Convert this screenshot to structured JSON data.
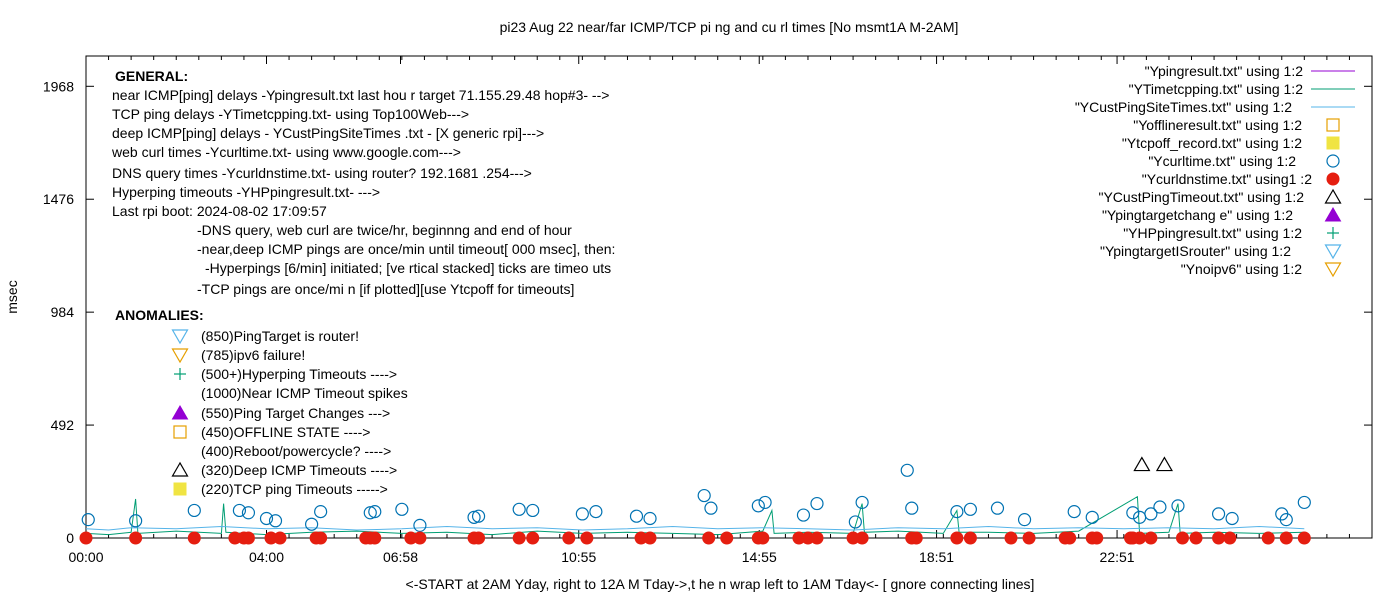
{
  "chart_data": {
    "type": "scatter",
    "title": "pi23 Aug 22  near/far ICMP/TCP pi ng and cu rl times [No msmt1A M-2AM]",
    "xlabel": "<-START at 2AM Yday, right to 12A M Tday->,t he n wrap left to 1AM Tday<- [ gnore connecting lines]",
    "ylabel": "msec",
    "y_ticks": [
      "0",
      "492",
      "984",
      "1476",
      "1968"
    ],
    "x_ticks": [
      "00:00",
      "04:00",
      "06:58",
      "10:55",
      "14:55",
      "18:51",
      "22:51"
    ],
    "x_tick_hours": [
      0,
      4,
      6.97,
      10.92,
      14.92,
      18.85,
      22.85
    ],
    "xlim_hours": [
      0,
      28.5
    ],
    "ylim": [
      0,
      2100
    ],
    "grid": false,
    "legend_position": "top-right",
    "legend": [
      {
        "label": "\"Ypingresult.txt\" using 1:2",
        "symbol": "line",
        "color": "#9400d3"
      },
      {
        "label": "\"YTimetcpping.txt\" using 1:2",
        "symbol": "line",
        "color": "#009e73"
      },
      {
        "label": "\"YCustPingSiteTimes.txt\" using 1:2",
        "symbol": "line",
        "color": "#56b4e9"
      },
      {
        "label": "\"Yofflineresult.txt\" using 1:2",
        "symbol": "open-square",
        "color": "#e69f00"
      },
      {
        "label": "\"Ytcpoff_record.txt\" using 1:2",
        "symbol": "filled-square",
        "color": "#f0e442"
      },
      {
        "label": "\"Ycurltime.txt\" using 1:2",
        "symbol": "open-circle",
        "color": "#0072b2"
      },
      {
        "label": "\"Ycurldnstime.txt\" using1 :2",
        "symbol": "filled-circle",
        "color": "#e51e10"
      },
      {
        "label": "\"YCustPingTimeout.txt\" using 1:2",
        "symbol": "open-triangle-up",
        "color": "#000000"
      },
      {
        "label": "\"Ypingtargetchang e\" using 1:2",
        "symbol": "filled-triangle-up",
        "color": "#9400d3"
      },
      {
        "label": "\"YHPpingresult.txt\" using 1:2",
        "symbol": "plus",
        "color": "#009e73"
      },
      {
        "label": "\"YpingtargetISrouter\" using 1:2",
        "symbol": "open-triangle-down",
        "color": "#56b4e9"
      },
      {
        "label": "\"Ynoipv6\" using 1:2",
        "symbol": "open-triangle-down",
        "color": "#e69f00"
      }
    ],
    "annotation_general": [
      "GENERAL:",
      "near ICMP[ping] delays -Ypingresult.txt last hou r target 71.155.29.48 hop#3- -->",
      "TCP ping delays -YTimetcpping.txt- using Top100Web--->",
      "deep ICMP[ping] delays - YCustPingSiteTimes .txt - [X generic rpi]--->",
      "web curl times -Ycurltime.txt- using www.google.com--->",
      "DNS query times -Ycurldnstime.txt- using router? 192.1681 .254--->",
      "Hyperping timeouts -YHPpingresult.txt- --->",
      "Last rpi boot: 2024-08-02 17:09:57",
      "-DNS query, web curl are twice/hr, beginnng and end of hour",
      "-near,deep ICMP pings are once/min until timeout[  000 msec], then:",
      "-Hyperpings [6/min] initiated; [ve rtical stacked] ticks are timeo uts",
      "-TCP pings are once/mi n  [if plotted][use Ytcpoff for timeouts]"
    ],
    "annotation_anomalies_title": "ANOMALIES:",
    "annotation_anomalies": [
      {
        "symbol": "open-triangle-down",
        "color": "#56b4e9",
        "text": "(850)PingTarget is router!"
      },
      {
        "symbol": "open-triangle-down",
        "color": "#e69f00",
        "text": "(785)ipv6 failure!"
      },
      {
        "symbol": "plus",
        "color": "#009e73",
        "text": "(500+)Hyperping Timeouts ---->"
      },
      {
        "symbol": "none",
        "color": "#000000",
        "text": "(1000)Near ICMP Timeout spikes"
      },
      {
        "symbol": "filled-triangle-up",
        "color": "#9400d3",
        "text": "(550)Ping Target Changes --->"
      },
      {
        "symbol": "open-square",
        "color": "#e69f00",
        "text": "(450)OFFLINE STATE ---->"
      },
      {
        "symbol": "none",
        "color": "#000000",
        "text": "(400)Reboot/powercycle? ---->"
      },
      {
        "symbol": "open-triangle-up",
        "color": "#000000",
        "text": "(320)Deep ICMP Timeouts ---->"
      },
      {
        "symbol": "filled-square",
        "color": "#f0e442",
        "text": "(220)TCP ping Timeouts ----->"
      }
    ],
    "series": [
      {
        "name": "\"Ycurltime.txt\" using 1:2",
        "marker": "open-circle",
        "color": "#0072b2",
        "points": [
          [
            0.05,
            80
          ],
          [
            1.1,
            75
          ],
          [
            2.4,
            120
          ],
          [
            3.4,
            120
          ],
          [
            3.6,
            110
          ],
          [
            4.0,
            85
          ],
          [
            4.2,
            75
          ],
          [
            5.0,
            60
          ],
          [
            5.2,
            115
          ],
          [
            6.3,
            110
          ],
          [
            6.4,
            115
          ],
          [
            7.0,
            125
          ],
          [
            7.4,
            55
          ],
          [
            8.6,
            90
          ],
          [
            8.7,
            95
          ],
          [
            9.6,
            125
          ],
          [
            9.9,
            120
          ],
          [
            11.0,
            105
          ],
          [
            11.3,
            115
          ],
          [
            12.2,
            95
          ],
          [
            12.5,
            85
          ],
          [
            13.7,
            185
          ],
          [
            13.85,
            130
          ],
          [
            14.9,
            140
          ],
          [
            15.05,
            155
          ],
          [
            15.9,
            100
          ],
          [
            16.2,
            150
          ],
          [
            17.05,
            70
          ],
          [
            17.2,
            155
          ],
          [
            18.2,
            295
          ],
          [
            18.3,
            130
          ],
          [
            19.3,
            115
          ],
          [
            19.6,
            125
          ],
          [
            20.2,
            130
          ],
          [
            20.8,
            80
          ],
          [
            21.9,
            115
          ],
          [
            22.3,
            90
          ],
          [
            23.2,
            110
          ],
          [
            23.35,
            90
          ],
          [
            23.6,
            105
          ],
          [
            23.8,
            135
          ],
          [
            24.2,
            140
          ],
          [
            25.1,
            105
          ],
          [
            25.4,
            85
          ],
          [
            26.5,
            105
          ],
          [
            26.6,
            80
          ],
          [
            27.0,
            155
          ]
        ]
      },
      {
        "name": "\"Ycurldnstime.txt\" using1 :2",
        "marker": "filled-circle",
        "color": "#e51e10",
        "points": [
          [
            0.0,
            0
          ],
          [
            1.1,
            0
          ],
          [
            2.4,
            0
          ],
          [
            3.3,
            0
          ],
          [
            3.5,
            0
          ],
          [
            3.6,
            0
          ],
          [
            4.1,
            0
          ],
          [
            4.3,
            0
          ],
          [
            5.1,
            0
          ],
          [
            5.2,
            0
          ],
          [
            6.2,
            0
          ],
          [
            6.3,
            0
          ],
          [
            6.4,
            0
          ],
          [
            7.2,
            0
          ],
          [
            7.4,
            0
          ],
          [
            8.6,
            0
          ],
          [
            8.7,
            0
          ],
          [
            9.6,
            0
          ],
          [
            9.9,
            0
          ],
          [
            10.7,
            0
          ],
          [
            11.1,
            0
          ],
          [
            12.3,
            0
          ],
          [
            12.5,
            0
          ],
          [
            13.8,
            0
          ],
          [
            14.2,
            0
          ],
          [
            14.9,
            0
          ],
          [
            15.0,
            0
          ],
          [
            15.8,
            0
          ],
          [
            16.0,
            0
          ],
          [
            16.2,
            0
          ],
          [
            17.0,
            0
          ],
          [
            17.2,
            0
          ],
          [
            18.3,
            0
          ],
          [
            18.4,
            0
          ],
          [
            19.3,
            0
          ],
          [
            19.6,
            0
          ],
          [
            20.5,
            0
          ],
          [
            20.9,
            0
          ],
          [
            21.7,
            0
          ],
          [
            21.8,
            0
          ],
          [
            22.3,
            0
          ],
          [
            22.4,
            0
          ],
          [
            23.15,
            0
          ],
          [
            23.2,
            0
          ],
          [
            23.35,
            0
          ],
          [
            23.6,
            0
          ],
          [
            24.3,
            0
          ],
          [
            24.6,
            0
          ],
          [
            25.1,
            0
          ],
          [
            25.35,
            0
          ],
          [
            26.2,
            0
          ],
          [
            26.6,
            0
          ],
          [
            27.0,
            0
          ]
        ]
      },
      {
        "name": "\"YCustPingTimeout.txt\" using 1:2",
        "marker": "open-triangle-up",
        "color": "#000000",
        "points": [
          [
            23.4,
            320
          ],
          [
            23.9,
            320
          ]
        ]
      },
      {
        "name": "\"YTimetcpping.txt\" using 1:2",
        "marker": "line",
        "color": "#009e73",
        "points": [
          [
            0,
            20
          ],
          [
            0.5,
            15
          ],
          [
            1,
            25
          ],
          [
            1.1,
            170
          ],
          [
            1.15,
            20
          ],
          [
            2,
            30
          ],
          [
            3,
            20
          ],
          [
            3.05,
            150
          ],
          [
            3.1,
            25
          ],
          [
            4,
            15
          ],
          [
            5,
            25
          ],
          [
            6,
            30
          ],
          [
            7,
            20
          ],
          [
            8,
            25
          ],
          [
            9,
            15
          ],
          [
            10,
            30
          ],
          [
            11,
            20
          ],
          [
            12,
            25
          ],
          [
            13,
            20
          ],
          [
            14,
            15
          ],
          [
            15,
            30
          ],
          [
            15.2,
            120
          ],
          [
            15.25,
            20
          ],
          [
            16,
            25
          ],
          [
            17,
            20
          ],
          [
            17.2,
            150
          ],
          [
            17.25,
            25
          ],
          [
            18,
            30
          ],
          [
            19,
            20
          ],
          [
            19.3,
            120
          ],
          [
            19.35,
            25
          ],
          [
            20,
            25
          ],
          [
            21,
            20
          ],
          [
            22,
            30
          ],
          [
            23.3,
            180
          ],
          [
            23.35,
            20
          ],
          [
            24,
            25
          ],
          [
            24.2,
            150
          ],
          [
            24.25,
            20
          ],
          [
            25,
            25
          ],
          [
            26,
            20
          ],
          [
            27,
            25
          ]
        ]
      },
      {
        "name": "\"YCustPingSiteTimes.txt\" using 1:2",
        "marker": "line",
        "color": "#56b4e9",
        "points": [
          [
            0,
            40
          ],
          [
            0.5,
            35
          ],
          [
            1,
            45
          ],
          [
            2,
            40
          ],
          [
            3,
            50
          ],
          [
            4,
            40
          ],
          [
            5,
            45
          ],
          [
            6,
            35
          ],
          [
            7,
            40
          ],
          [
            8,
            50
          ],
          [
            9,
            40
          ],
          [
            10,
            45
          ],
          [
            11,
            35
          ],
          [
            12,
            40
          ],
          [
            13,
            50
          ],
          [
            14,
            40
          ],
          [
            15,
            45
          ],
          [
            16,
            40
          ],
          [
            17,
            35
          ],
          [
            18,
            45
          ],
          [
            19,
            40
          ],
          [
            20,
            50
          ],
          [
            21,
            40
          ],
          [
            22,
            45
          ],
          [
            23,
            40
          ],
          [
            24,
            45
          ],
          [
            25,
            40
          ],
          [
            26,
            50
          ],
          [
            27,
            40
          ]
        ]
      }
    ]
  }
}
